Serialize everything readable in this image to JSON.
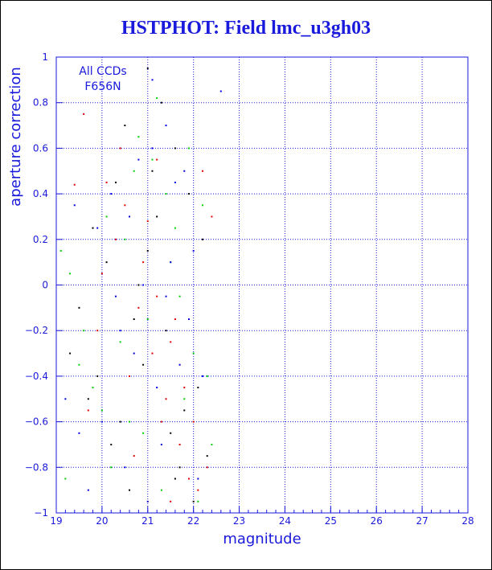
{
  "chart_data": {
    "type": "scatter",
    "title": "HSTPHOT: Field lmc_u3gh03",
    "xlabel": "magnitude",
    "ylabel": "aperture correction",
    "xlim": [
      19,
      28
    ],
    "ylim": [
      -1,
      1
    ],
    "x_ticks": [
      19,
      20,
      21,
      22,
      23,
      24,
      25,
      26,
      27,
      28
    ],
    "y_ticks": [
      1,
      0.8,
      0.6,
      0.4,
      0.2,
      0,
      -0.2,
      -0.4,
      -0.6,
      -0.8,
      -1
    ],
    "x_tick_labels": [
      "19",
      "20",
      "21",
      "22",
      "23",
      "24",
      "25",
      "26",
      "27",
      "28"
    ],
    "y_tick_labels": [
      "1",
      "0.8",
      "0.6",
      "0.4",
      "0.2",
      "0",
      "−0.2",
      "−0.4",
      "−0.6",
      "−0.8",
      "−1"
    ],
    "grid": true,
    "annotations": [
      "All CCDs",
      "F656N"
    ],
    "colors": {
      "axis": "#1a1adc",
      "grid": "#1a1adc",
      "red": "#e00000",
      "green": "#00d000",
      "blue": "#0000e0",
      "black": "#000000"
    },
    "series": [
      {
        "color": "black",
        "x": [
          19.3,
          19.7,
          20.2,
          20.6,
          21.0,
          21.3,
          21.6,
          21.9,
          22.2,
          20.8,
          21.4,
          19.9,
          20.4,
          21.7,
          22.0,
          20.1,
          21.2,
          19.5,
          20.9,
          21.8,
          22.3,
          21.1,
          20.5,
          21.5,
          19.8,
          22.1,
          20.7,
          21.0,
          21.6,
          20.3
        ],
        "y": [
          -0.3,
          -0.5,
          -0.7,
          -0.9,
          0.95,
          0.8,
          0.6,
          0.4,
          0.2,
          0.0,
          -0.2,
          -0.4,
          -0.6,
          -0.8,
          -0.95,
          0.1,
          0.3,
          -0.1,
          -0.35,
          -0.55,
          -0.75,
          0.5,
          0.7,
          -0.65,
          0.25,
          -0.45,
          -0.15,
          0.15,
          -0.85,
          0.45
        ]
      },
      {
        "color": "red",
        "x": [
          19.6,
          20.1,
          20.5,
          20.9,
          21.2,
          21.5,
          21.8,
          22.0,
          22.3,
          19.4,
          20.3,
          20.8,
          21.1,
          21.4,
          21.7,
          22.1,
          19.9,
          20.6,
          21.3,
          21.9,
          20.0,
          20.4,
          21.0,
          21.6,
          22.2,
          19.7,
          20.7,
          21.5,
          22.4,
          21.2
        ],
        "y": [
          0.75,
          0.45,
          0.35,
          0.1,
          -0.05,
          -0.25,
          -0.45,
          -0.6,
          -0.8,
          0.44,
          0.2,
          -0.1,
          -0.3,
          -0.5,
          -0.7,
          -0.9,
          -0.2,
          -0.4,
          -0.6,
          -0.85,
          0.05,
          0.6,
          0.28,
          -0.15,
          0.5,
          -0.55,
          -0.75,
          -0.95,
          0.3,
          0.55
        ]
      },
      {
        "color": "green",
        "x": [
          19.1,
          19.5,
          20.0,
          20.4,
          20.8,
          21.2,
          21.6,
          22.0,
          22.4,
          19.3,
          19.8,
          20.2,
          20.6,
          21.0,
          21.4,
          21.8,
          22.2,
          19.2,
          20.5,
          21.1,
          21.7,
          20.9,
          21.3,
          20.1,
          21.5,
          22.3,
          19.6,
          20.7,
          21.9,
          22.1
        ],
        "y": [
          0.15,
          -0.35,
          -0.55,
          -0.25,
          0.65,
          0.82,
          0.25,
          -0.3,
          -0.7,
          0.05,
          -0.45,
          -0.8,
          -0.6,
          -0.15,
          0.4,
          -0.5,
          0.35,
          -0.85,
          0.2,
          0.55,
          -0.05,
          -0.65,
          -0.9,
          0.3,
          0.1,
          -0.4,
          -0.2,
          0.5,
          0.6,
          -0.95
        ]
      },
      {
        "color": "blue",
        "x": [
          19.4,
          19.9,
          20.3,
          20.7,
          21.1,
          21.5,
          21.9,
          22.2,
          20.0,
          20.5,
          21.0,
          21.4,
          21.8,
          22.6,
          19.2,
          20.2,
          20.9,
          21.3,
          21.7,
          22.0,
          19.7,
          20.6,
          21.2,
          21.6,
          20.4,
          21.1,
          19.5,
          20.8,
          22.1,
          21.4
        ],
        "y": [
          0.35,
          0.25,
          -0.05,
          -0.3,
          0.6,
          0.1,
          -0.15,
          -0.4,
          -0.6,
          -0.8,
          -0.95,
          0.7,
          0.5,
          0.85,
          -0.5,
          0.4,
          0.0,
          -0.7,
          -0.35,
          0.15,
          -0.9,
          0.3,
          -0.45,
          0.45,
          -0.2,
          0.9,
          -0.65,
          0.55,
          -0.85,
          -0.05
        ]
      }
    ]
  }
}
